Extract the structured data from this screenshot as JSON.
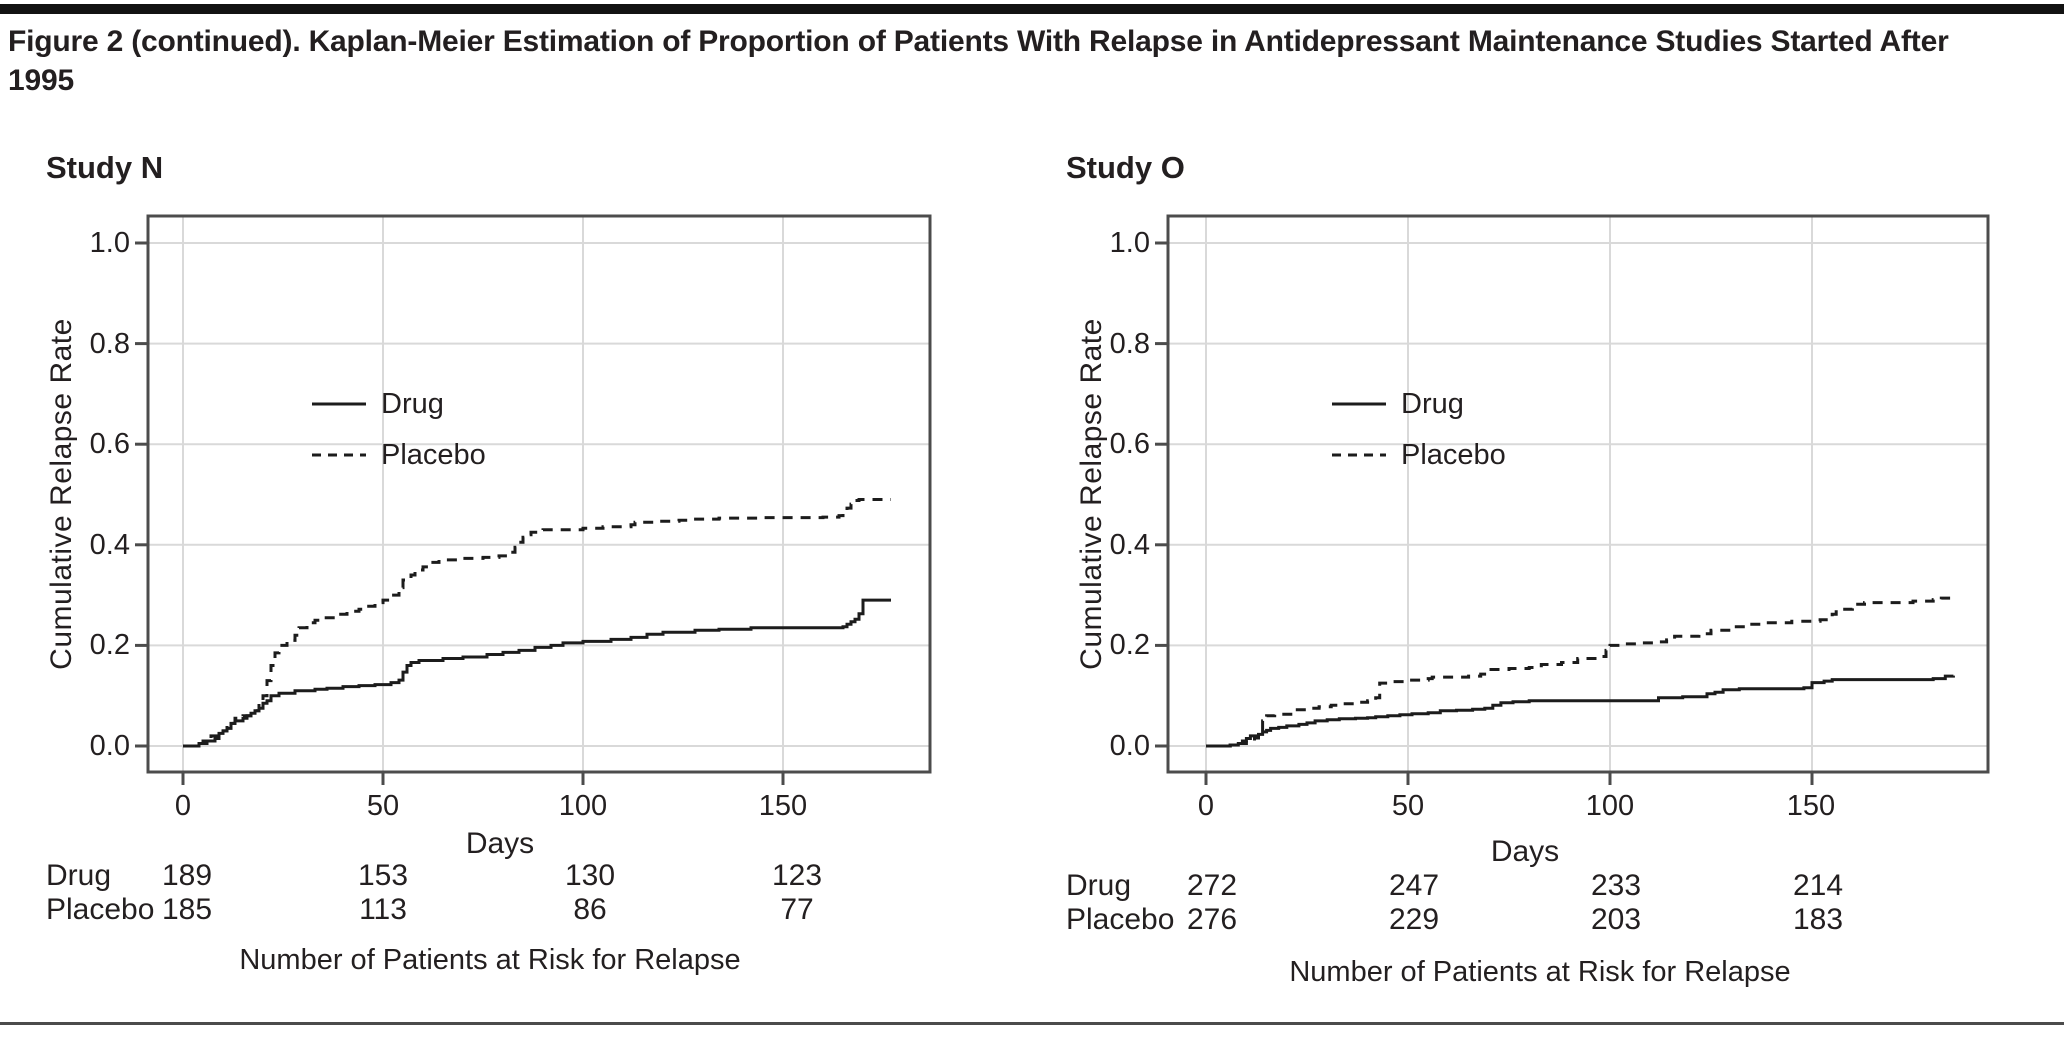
{
  "figure": {
    "title": "Figure 2 (continued). Kaplan-Meier Estimation of Proportion of Patients With Relapse in Antidepressant Maintenance Studies Started After 1995"
  },
  "colors": {
    "curve": "#1c1c1c",
    "grid": "#d9d9d9",
    "frame": "#4c4c4c",
    "text": "#231f20",
    "title_bar": "#121212",
    "background": "#ffffff"
  },
  "chart_data": [
    {
      "type": "line",
      "subtype": "kaplan-meier-step",
      "title": "Study N",
      "xlabel": "Days",
      "ylabel": "Cumulative Relapse Rate",
      "xlim": [
        -9,
        187
      ],
      "ylim": [
        -0.05,
        1.05
      ],
      "grid": true,
      "x_ticks": [
        0,
        50,
        100,
        150
      ],
      "x_tick_labels": [
        "0",
        "50",
        "100",
        "150"
      ],
      "y_ticks": [
        0.0,
        0.2,
        0.4,
        0.6,
        0.8,
        1.0
      ],
      "y_tick_labels_top_down": [
        "1.0",
        "0.8",
        "0.6",
        "0.4",
        "0.2",
        "0.0"
      ],
      "legend": {
        "position": "inside-upper-left",
        "entries": [
          {
            "label": "Drug",
            "line": "solid"
          },
          {
            "label": "Placebo",
            "line": "dashed"
          }
        ]
      },
      "series": [
        {
          "name": "Drug",
          "line": "solid",
          "points": [
            [
              0,
              0
            ],
            [
              4,
              0.005
            ],
            [
              6,
              0.01
            ],
            [
              8,
              0.015
            ],
            [
              9,
              0.025
            ],
            [
              10,
              0.03
            ],
            [
              11,
              0.035
            ],
            [
              12,
              0.045
            ],
            [
              13,
              0.05
            ],
            [
              15,
              0.055
            ],
            [
              16,
              0.06
            ],
            [
              17,
              0.065
            ],
            [
              18,
              0.07
            ],
            [
              19,
              0.075
            ],
            [
              20,
              0.085
            ],
            [
              21,
              0.09
            ],
            [
              22,
              0.1
            ],
            [
              24,
              0.105
            ],
            [
              28,
              0.11
            ],
            [
              33,
              0.113
            ],
            [
              36,
              0.115
            ],
            [
              40,
              0.118
            ],
            [
              44,
              0.12
            ],
            [
              48,
              0.122
            ],
            [
              52,
              0.126
            ],
            [
              54,
              0.131
            ],
            [
              55,
              0.147
            ],
            [
              56,
              0.16
            ],
            [
              57,
              0.166
            ],
            [
              59,
              0.17
            ],
            [
              65,
              0.174
            ],
            [
              70,
              0.177
            ],
            [
              76,
              0.182
            ],
            [
              80,
              0.186
            ],
            [
              84,
              0.19
            ],
            [
              88,
              0.196
            ],
            [
              92,
              0.2
            ],
            [
              95,
              0.205
            ],
            [
              100,
              0.208
            ],
            [
              107,
              0.212
            ],
            [
              112,
              0.216
            ],
            [
              116,
              0.222
            ],
            [
              120,
              0.226
            ],
            [
              128,
              0.23
            ],
            [
              134,
              0.232
            ],
            [
              142,
              0.235
            ],
            [
              165,
              0.237
            ],
            [
              166,
              0.242
            ],
            [
              167,
              0.247
            ],
            [
              168,
              0.252
            ],
            [
              169,
              0.263
            ],
            [
              170,
              0.29
            ],
            [
              177,
              0.29
            ]
          ]
        },
        {
          "name": "Placebo",
          "line": "dashed",
          "points": [
            [
              0,
              0
            ],
            [
              3,
              0.005
            ],
            [
              5,
              0.01
            ],
            [
              7,
              0.02
            ],
            [
              9,
              0.03
            ],
            [
              11,
              0.04
            ],
            [
              12,
              0.045
            ],
            [
              13,
              0.055
            ],
            [
              15,
              0.06
            ],
            [
              17,
              0.065
            ],
            [
              18,
              0.07
            ],
            [
              19,
              0.085
            ],
            [
              20,
              0.1
            ],
            [
              21,
              0.13
            ],
            [
              22,
              0.16
            ],
            [
              23,
              0.185
            ],
            [
              24,
              0.2
            ],
            [
              26,
              0.21
            ],
            [
              28,
              0.22
            ],
            [
              29,
              0.235
            ],
            [
              31,
              0.245
            ],
            [
              33,
              0.25
            ],
            [
              35,
              0.255
            ],
            [
              38,
              0.262
            ],
            [
              41,
              0.268
            ],
            [
              44,
              0.272
            ],
            [
              46,
              0.278
            ],
            [
              48,
              0.285
            ],
            [
              50,
              0.29
            ],
            [
              52,
              0.3
            ],
            [
              54,
              0.315
            ],
            [
              55,
              0.33
            ],
            [
              57,
              0.34
            ],
            [
              58,
              0.35
            ],
            [
              60,
              0.356
            ],
            [
              62,
              0.365
            ],
            [
              64,
              0.37
            ],
            [
              70,
              0.373
            ],
            [
              75,
              0.375
            ],
            [
              79,
              0.378
            ],
            [
              82,
              0.385
            ],
            [
              83,
              0.395
            ],
            [
              84,
              0.405
            ],
            [
              85,
              0.415
            ],
            [
              86,
              0.42
            ],
            [
              87,
              0.425
            ],
            [
              90,
              0.43
            ],
            [
              100,
              0.433
            ],
            [
              105,
              0.436
            ],
            [
              112,
              0.44
            ],
            [
              113,
              0.445
            ],
            [
              118,
              0.447
            ],
            [
              124,
              0.449
            ],
            [
              127,
              0.451
            ],
            [
              134,
              0.453
            ],
            [
              145,
              0.454
            ],
            [
              160,
              0.455
            ],
            [
              164,
              0.458
            ],
            [
              165,
              0.465
            ],
            [
              166,
              0.473
            ],
            [
              167,
              0.481
            ],
            [
              168,
              0.488
            ],
            [
              169,
              0.49
            ],
            [
              177,
              0.49
            ]
          ]
        }
      ],
      "at_risk": {
        "caption": "Number of Patients at Risk for Relapse",
        "tick_days": [
          0,
          50,
          100,
          150
        ],
        "rows": [
          {
            "label": "Drug",
            "values": [
              "189",
              "153",
              "130",
              "123"
            ]
          },
          {
            "label": "Placebo",
            "values": [
              "185",
              "113",
              "86",
              "77"
            ]
          }
        ]
      }
    },
    {
      "type": "line",
      "subtype": "kaplan-meier-step",
      "title": "Study O",
      "xlabel": "Days",
      "ylabel": "Cumulative Relapse Rate",
      "xlim": [
        -10,
        194
      ],
      "ylim": [
        -0.05,
        1.05
      ],
      "grid": true,
      "x_ticks": [
        0,
        50,
        100,
        150
      ],
      "x_tick_labels": [
        "0",
        "50",
        "100",
        "150"
      ],
      "y_ticks": [
        0.0,
        0.2,
        0.4,
        0.6,
        0.8,
        1.0
      ],
      "y_tick_labels_top_down": [
        "1.0",
        "0.8",
        "0.6",
        "0.4",
        "0.2",
        "0.0"
      ],
      "legend": {
        "position": "inside-upper-left",
        "entries": [
          {
            "label": "Drug",
            "line": "solid"
          },
          {
            "label": "Placebo",
            "line": "dashed"
          }
        ]
      },
      "series": [
        {
          "name": "Drug",
          "line": "solid",
          "points": [
            [
              0,
              0
            ],
            [
              6,
              0.002
            ],
            [
              8,
              0.005
            ],
            [
              9,
              0.01
            ],
            [
              10,
              0.015
            ],
            [
              11,
              0.02
            ],
            [
              13,
              0.023
            ],
            [
              14,
              0.028
            ],
            [
              15,
              0.031
            ],
            [
              16,
              0.035
            ],
            [
              18,
              0.037
            ],
            [
              20,
              0.04
            ],
            [
              23,
              0.043
            ],
            [
              25,
              0.046
            ],
            [
              27,
              0.05
            ],
            [
              30,
              0.052
            ],
            [
              33,
              0.054
            ],
            [
              37,
              0.055
            ],
            [
              40,
              0.056
            ],
            [
              42,
              0.058
            ],
            [
              45,
              0.06
            ],
            [
              48,
              0.062
            ],
            [
              51,
              0.064
            ],
            [
              55,
              0.066
            ],
            [
              58,
              0.07
            ],
            [
              62,
              0.071
            ],
            [
              66,
              0.073
            ],
            [
              69,
              0.075
            ],
            [
              71,
              0.081
            ],
            [
              73,
              0.086
            ],
            [
              76,
              0.088
            ],
            [
              80,
              0.09
            ],
            [
              112,
              0.096
            ],
            [
              118,
              0.098
            ],
            [
              124,
              0.104
            ],
            [
              126,
              0.107
            ],
            [
              128,
              0.112
            ],
            [
              132,
              0.114
            ],
            [
              148,
              0.116
            ],
            [
              150,
              0.126
            ],
            [
              153,
              0.129
            ],
            [
              155,
              0.132
            ],
            [
              180,
              0.134
            ],
            [
              183,
              0.139
            ],
            [
              185,
              0.14
            ]
          ]
        },
        {
          "name": "Placebo",
          "line": "dashed",
          "points": [
            [
              0,
              0
            ],
            [
              6,
              0.002
            ],
            [
              8,
              0.005
            ],
            [
              10,
              0.01
            ],
            [
              12,
              0.016
            ],
            [
              13,
              0.03
            ],
            [
              14,
              0.05
            ],
            [
              15,
              0.06
            ],
            [
              17,
              0.063
            ],
            [
              21,
              0.066
            ],
            [
              22,
              0.072
            ],
            [
              25,
              0.075
            ],
            [
              28,
              0.078
            ],
            [
              31,
              0.081
            ],
            [
              34,
              0.084
            ],
            [
              37,
              0.087
            ],
            [
              40,
              0.09
            ],
            [
              42,
              0.096
            ],
            [
              43,
              0.125
            ],
            [
              45,
              0.128
            ],
            [
              50,
              0.131
            ],
            [
              55,
              0.134
            ],
            [
              56,
              0.137
            ],
            [
              65,
              0.139
            ],
            [
              68,
              0.143
            ],
            [
              70,
              0.152
            ],
            [
              75,
              0.154
            ],
            [
              80,
              0.156
            ],
            [
              83,
              0.162
            ],
            [
              88,
              0.166
            ],
            [
              92,
              0.174
            ],
            [
              97,
              0.178
            ],
            [
              99,
              0.19
            ],
            [
              100,
              0.2
            ],
            [
              103,
              0.203
            ],
            [
              108,
              0.205
            ],
            [
              112,
              0.207
            ],
            [
              114,
              0.211
            ],
            [
              116,
              0.218
            ],
            [
              122,
              0.223
            ],
            [
              125,
              0.23
            ],
            [
              130,
              0.237
            ],
            [
              134,
              0.242
            ],
            [
              138,
              0.245
            ],
            [
              145,
              0.248
            ],
            [
              152,
              0.251
            ],
            [
              155,
              0.262
            ],
            [
              156,
              0.272
            ],
            [
              160,
              0.282
            ],
            [
              163,
              0.285
            ],
            [
              175,
              0.288
            ],
            [
              180,
              0.291
            ],
            [
              182,
              0.294
            ],
            [
              185,
              0.296
            ]
          ]
        }
      ],
      "at_risk": {
        "caption": "Number of Patients at Risk for Relapse",
        "tick_days": [
          0,
          50,
          100,
          150
        ],
        "rows": [
          {
            "label": "Drug",
            "values": [
              "272",
              "247",
              "233",
              "214"
            ]
          },
          {
            "label": "Placebo",
            "values": [
              "276",
              "229",
              "203",
              "183"
            ]
          }
        ]
      }
    }
  ]
}
